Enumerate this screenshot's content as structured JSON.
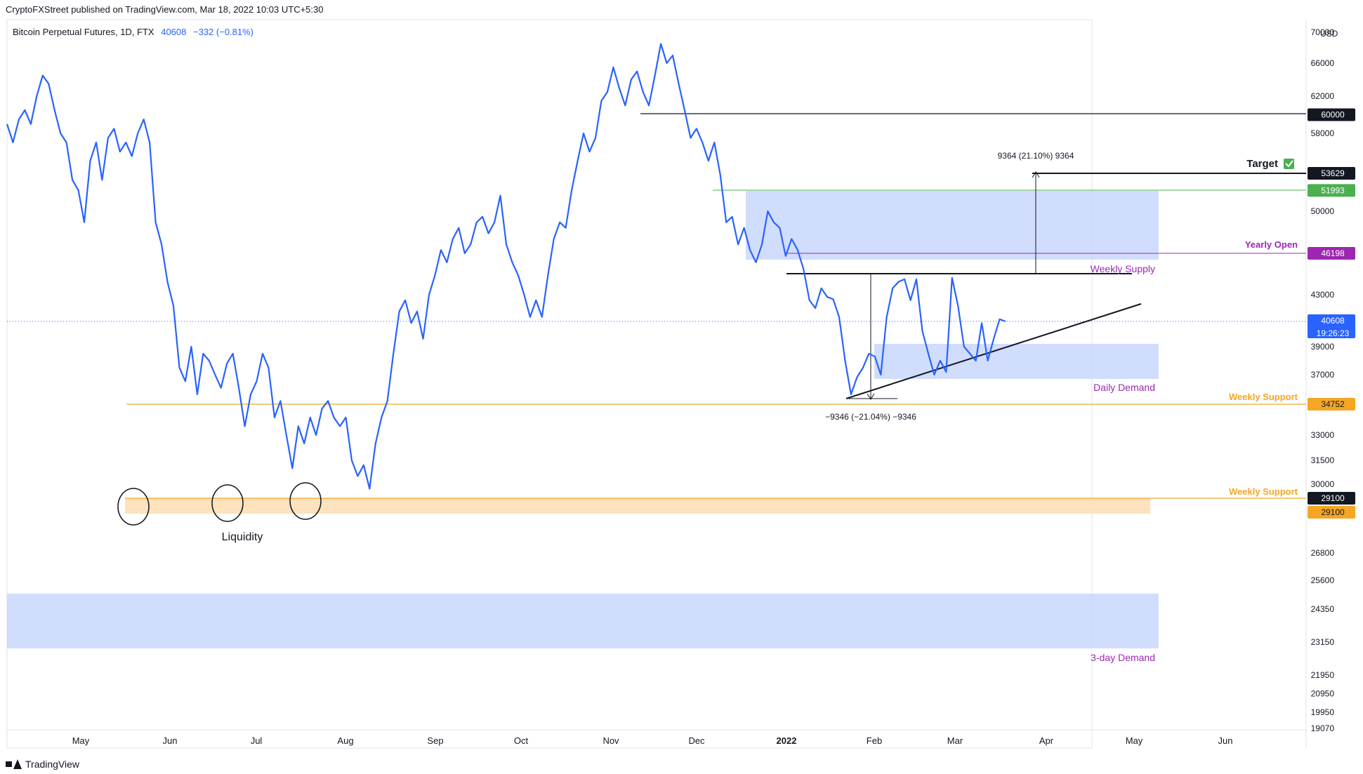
{
  "header": {
    "published": "CryptoFXStreet published on TradingView.com, Mar 18, 2022 10:03 UTC+5:30"
  },
  "legend": {
    "symbol": "Bitcoin Perpetual Futures, 1D, FTX",
    "price": "40608",
    "change": "−332 (−0.81%)"
  },
  "footer": {
    "brand": "TradingView"
  },
  "colors": {
    "line": "#2962ff",
    "supply": "#c5d4fb",
    "support": "#f5a623",
    "support_zone": "#fde2bd",
    "yearly": "#9c27b0",
    "green": "#4caf50"
  },
  "chart_data": {
    "type": "line",
    "title": "",
    "xlabel": "",
    "ylabel": "",
    "currency": "USD",
    "ylim": [
      18600,
      70000
    ],
    "x_ticks": [
      "May",
      "Jun",
      "Jul",
      "Aug",
      "Sep",
      "Oct",
      "Nov",
      "Dec",
      "2022",
      "Feb",
      "Mar",
      "Apr",
      "May",
      "Jun"
    ],
    "y_ticks": [
      "19070",
      "19950",
      "20950",
      "21950",
      "23150",
      "24350",
      "25600",
      "26800",
      "29100",
      "30000",
      "31500",
      "33000",
      "34752",
      "37000",
      "39000",
      "40608",
      "43000",
      "46198",
      "50000",
      "51993",
      "53629",
      "58000",
      "60000",
      "62000",
      "66000",
      "70000"
    ],
    "series": [
      {
        "values": [
          59000,
          57000,
          59500,
          60500,
          59000,
          62000,
          64500,
          63500,
          60500,
          58000,
          57000,
          53000,
          52000,
          49000,
          55000,
          57000,
          53000,
          57500,
          58500,
          56000,
          57000,
          55500,
          58000,
          59500,
          57000,
          49000,
          47000,
          44000,
          42000,
          37500,
          36500,
          39000,
          35500,
          38500,
          38000,
          37000,
          36000,
          37800,
          38500,
          36000,
          33500,
          35500,
          36500,
          38500,
          37500,
          34000,
          35000,
          33000,
          31000,
          33500,
          32500,
          34000,
          33000,
          34500,
          35000,
          34000,
          33500,
          34000,
          31500,
          30500,
          31200,
          29700,
          32500,
          34000,
          35000,
          38500,
          41500,
          42500,
          40500,
          41500,
          39500,
          43000,
          44500,
          46500,
          45500,
          47500,
          48500,
          46200,
          47000,
          49000,
          49500,
          48000,
          49000,
          51500,
          47000,
          45500,
          44500,
          43000,
          41000,
          42500,
          41000,
          44500,
          47500,
          49000,
          48500,
          52000,
          55000,
          58000,
          56000,
          57500,
          61500,
          62500,
          65500,
          63000,
          61000,
          64000,
          65000,
          62500,
          61000,
          64500,
          68500,
          66000,
          67000,
          63500,
          60500,
          57500,
          58500,
          57000,
          55000,
          57000,
          53500,
          49000,
          49500,
          47000,
          48500,
          46500,
          45500,
          47000,
          50000,
          49000,
          48500,
          46000,
          47500,
          46500,
          45000,
          42500,
          41800,
          43500,
          42800,
          42600,
          41000,
          38000,
          35500,
          36800,
          37500,
          38500,
          38300,
          37000,
          41000,
          43500,
          44000,
          44200,
          42500,
          44200,
          40000,
          38500,
          37000,
          38000,
          37200,
          44300,
          42000,
          39000,
          38500,
          38000,
          40500,
          38000,
          39500,
          40800,
          40608
        ]
      }
    ],
    "annotations": {
      "zones": [
        "Weekly Supply",
        "Daily Demand",
        "3-day Demand"
      ],
      "support_labels": [
        "Weekly Support",
        "Weekly Support"
      ],
      "yearly_open": "Yearly Open",
      "target": "Target",
      "liquidity": "Liquidity",
      "measure_up": "9364 (21.10%) 9364",
      "measure_down": "−9346 (−21.04%) −9346",
      "price_time": "19:26:23"
    }
  }
}
